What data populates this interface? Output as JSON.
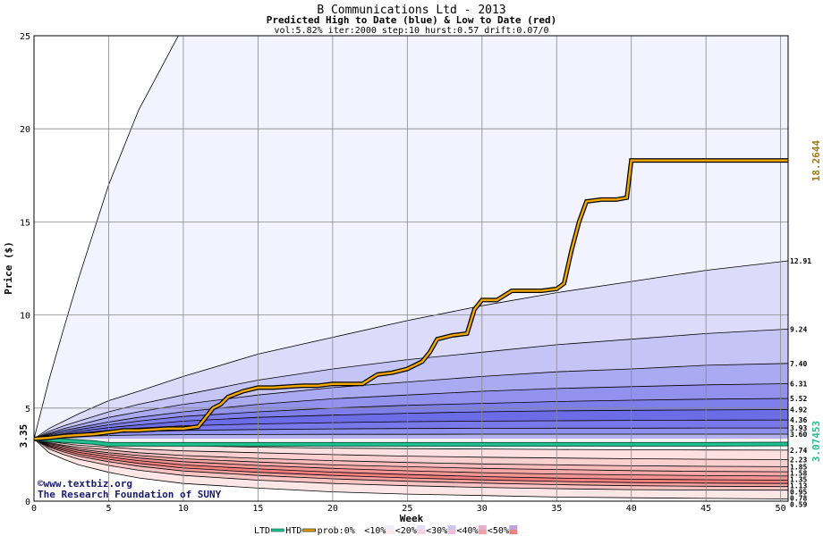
{
  "chart_data": {
    "type": "area",
    "title": "B Communications Ltd - 2013",
    "subtitle": "Predicted High to Date (blue) &  Low to Date (red)",
    "params": "vol:5.82% iter:2000 step:10 hurst:0.57 drift:0.07/0",
    "xlabel": "Week",
    "ylabel": "Price ($)",
    "xlim": [
      0,
      50.5
    ],
    "ylim": [
      0,
      25
    ],
    "x_ticks": [
      "0",
      "5",
      "10",
      "15",
      "20",
      "25",
      "30",
      "35",
      "40",
      "45",
      "50"
    ],
    "y_ticks": [
      "0",
      "5",
      "10",
      "15",
      "20",
      "25"
    ],
    "start_price": 3.35,
    "start_label": "3.35",
    "grid": true,
    "band_weeks": [
      0,
      1,
      2,
      3,
      5,
      7,
      10,
      15,
      20,
      25,
      30,
      35,
      40,
      45,
      50.5
    ],
    "upper_bounds": [
      {
        "end_label": "",
        "values": [
          3.35,
          6.5,
          9.3,
          12.0,
          17.0,
          21.0,
          25.5,
          25.5,
          25.5,
          25.5,
          25.5,
          25.5,
          25.5,
          25.5,
          25.5
        ]
      },
      {
        "end_label": "12.91",
        "values": [
          3.35,
          3.9,
          4.3,
          4.7,
          5.4,
          5.9,
          6.7,
          7.9,
          8.8,
          9.7,
          10.5,
          11.2,
          11.8,
          12.4,
          12.91
        ]
      },
      {
        "end_label": "9.24",
        "values": [
          3.35,
          3.75,
          4.05,
          4.3,
          4.8,
          5.2,
          5.7,
          6.5,
          7.1,
          7.6,
          8.0,
          8.4,
          8.7,
          9.0,
          9.24
        ]
      },
      {
        "end_label": "7.40",
        "values": [
          3.35,
          3.65,
          3.9,
          4.1,
          4.5,
          4.8,
          5.2,
          5.7,
          6.1,
          6.4,
          6.7,
          6.95,
          7.1,
          7.3,
          7.4
        ]
      },
      {
        "end_label": "6.31",
        "values": [
          3.35,
          3.6,
          3.8,
          3.95,
          4.25,
          4.5,
          4.8,
          5.2,
          5.5,
          5.7,
          5.9,
          6.05,
          6.15,
          6.25,
          6.31
        ]
      },
      {
        "end_label": "5.52",
        "values": [
          3.35,
          3.55,
          3.7,
          3.85,
          4.1,
          4.3,
          4.55,
          4.8,
          5.0,
          5.15,
          5.25,
          5.35,
          5.42,
          5.48,
          5.52
        ]
      },
      {
        "end_label": "4.92",
        "values": [
          3.35,
          3.5,
          3.62,
          3.75,
          3.95,
          4.1,
          4.3,
          4.5,
          4.62,
          4.72,
          4.8,
          4.85,
          4.88,
          4.9,
          4.92
        ]
      },
      {
        "end_label": "4.36",
        "values": [
          3.35,
          3.46,
          3.56,
          3.65,
          3.8,
          3.92,
          4.05,
          4.15,
          4.22,
          4.27,
          4.3,
          4.32,
          4.34,
          4.35,
          4.36
        ]
      },
      {
        "end_label": "3.93",
        "values": [
          3.35,
          3.42,
          3.5,
          3.56,
          3.66,
          3.74,
          3.8,
          3.85,
          3.88,
          3.9,
          3.91,
          3.92,
          3.92,
          3.93,
          3.93
        ]
      },
      {
        "end_label": "3.60",
        "values": [
          3.35,
          3.4,
          3.45,
          3.48,
          3.52,
          3.55,
          3.57,
          3.58,
          3.59,
          3.59,
          3.6,
          3.6,
          3.6,
          3.6,
          3.6
        ]
      }
    ],
    "lower_bounds": [
      {
        "end_label": "2.74",
        "values": [
          3.35,
          3.3,
          3.25,
          3.2,
          3.12,
          3.05,
          2.98,
          2.9,
          2.85,
          2.82,
          2.8,
          2.78,
          2.76,
          2.75,
          2.74
        ]
      },
      {
        "end_label": "2.23",
        "values": [
          3.35,
          3.2,
          3.1,
          3.0,
          2.9,
          2.8,
          2.7,
          2.6,
          2.5,
          2.42,
          2.36,
          2.32,
          2.28,
          2.25,
          2.23
        ]
      },
      {
        "end_label": "1.85",
        "values": [
          3.35,
          3.15,
          3.0,
          2.9,
          2.75,
          2.6,
          2.45,
          2.3,
          2.18,
          2.08,
          2.0,
          1.95,
          1.9,
          1.87,
          1.85
        ]
      },
      {
        "end_label": "1.58",
        "values": [
          3.35,
          3.1,
          2.95,
          2.8,
          2.6,
          2.45,
          2.28,
          2.1,
          1.95,
          1.85,
          1.76,
          1.7,
          1.64,
          1.6,
          1.58
        ]
      },
      {
        "end_label": "1.35",
        "values": [
          3.35,
          3.05,
          2.88,
          2.72,
          2.5,
          2.32,
          2.12,
          1.92,
          1.76,
          1.63,
          1.53,
          1.46,
          1.41,
          1.37,
          1.35
        ]
      },
      {
        "end_label": "1.13",
        "values": [
          3.35,
          3.0,
          2.8,
          2.62,
          2.38,
          2.18,
          1.95,
          1.73,
          1.56,
          1.43,
          1.32,
          1.24,
          1.18,
          1.15,
          1.13
        ]
      },
      {
        "end_label": "0.95",
        "values": [
          3.35,
          2.95,
          2.72,
          2.52,
          2.25,
          2.03,
          1.78,
          1.55,
          1.38,
          1.25,
          1.14,
          1.06,
          1.0,
          0.97,
          0.95
        ]
      },
      {
        "end_label": "0.78",
        "values": [
          3.35,
          2.9,
          2.64,
          2.42,
          2.12,
          1.88,
          1.62,
          1.38,
          1.2,
          1.07,
          0.97,
          0.89,
          0.83,
          0.8,
          0.78
        ]
      },
      {
        "end_label": "0.59",
        "values": [
          3.35,
          2.8,
          2.5,
          2.25,
          1.92,
          1.66,
          1.38,
          1.13,
          0.95,
          0.83,
          0.74,
          0.67,
          0.62,
          0.6,
          0.59
        ]
      },
      {
        "end_label": "",
        "values": [
          3.35,
          2.6,
          2.25,
          1.95,
          1.55,
          1.25,
          0.95,
          0.7,
          0.5,
          0.38,
          0.3,
          0.22,
          0.18,
          0.15,
          0.12
        ]
      }
    ],
    "htd_series": {
      "x": [
        0,
        1,
        2,
        3,
        4,
        5,
        6,
        7,
        8,
        9,
        10,
        11,
        11.5,
        12,
        12.5,
        13,
        14,
        15,
        16,
        17,
        18,
        19,
        20,
        21,
        22,
        23,
        24,
        25,
        26,
        26.5,
        27,
        28,
        29,
        29.5,
        30,
        31,
        32,
        33,
        34,
        35,
        35.5,
        36,
        36.5,
        37,
        38,
        39,
        39.7,
        40,
        41,
        42,
        43,
        44,
        45,
        46,
        47,
        48,
        49,
        50,
        50.5
      ],
      "y": [
        3.35,
        3.4,
        3.5,
        3.55,
        3.6,
        3.7,
        3.8,
        3.8,
        3.85,
        3.9,
        3.9,
        4.0,
        4.5,
        5.0,
        5.2,
        5.6,
        5.9,
        6.1,
        6.1,
        6.15,
        6.2,
        6.2,
        6.3,
        6.3,
        6.3,
        6.8,
        6.9,
        7.1,
        7.5,
        8.0,
        8.7,
        8.9,
        9.0,
        10.3,
        10.8,
        10.8,
        11.3,
        11.3,
        11.3,
        11.4,
        11.7,
        13.5,
        15.0,
        16.1,
        16.2,
        16.2,
        16.3,
        18.3,
        18.3,
        18.3,
        18.3,
        18.3,
        18.3,
        18.3,
        18.3,
        18.3,
        18.3,
        18.3,
        18.3
      ]
    },
    "ltd_series": {
      "x": [
        0,
        1,
        2,
        3,
        4,
        5,
        6,
        7,
        8,
        9,
        10,
        15,
        20,
        25,
        30,
        35,
        40,
        45,
        50.5
      ],
      "y": [
        3.35,
        3.3,
        3.25,
        3.2,
        3.15,
        3.05,
        3.05,
        3.05,
        3.05,
        3.05,
        3.05,
        3.05,
        3.05,
        3.05,
        3.05,
        3.05,
        3.05,
        3.05,
        3.07
      ]
    },
    "htd_end_label": "18.2644",
    "ltd_end_label": "3.07453",
    "legend_placement": "bottom",
    "legend": [
      "LTD",
      "HTD",
      "prob:0%",
      "<10%",
      "<20%",
      "<30%",
      "<40%",
      "<50%"
    ],
    "upper_colors": [
      "#f3f3ff",
      "#dcdcfa",
      "#c4c4f6",
      "#aaaaf2",
      "#9292ee",
      "#7e7eea",
      "#6c6ce6",
      "#7878ea",
      "#9090ee",
      "#b2b2f2"
    ],
    "lower_colors": [
      "#f4f4f4",
      "#fde0e0",
      "#fbd0d0",
      "#f9bcbc",
      "#f6a8a8",
      "#f39494",
      "#f07e7e",
      "#f6a0a0",
      "#fac4c4",
      "#fde6e6"
    ],
    "htd_color": "#f0a800",
    "ltd_color": "#20c090",
    "grid_color": "#888888"
  },
  "credit": {
    "copyright": "©www.textbiz.org",
    "org": "The Research Foundation of SUNY"
  }
}
